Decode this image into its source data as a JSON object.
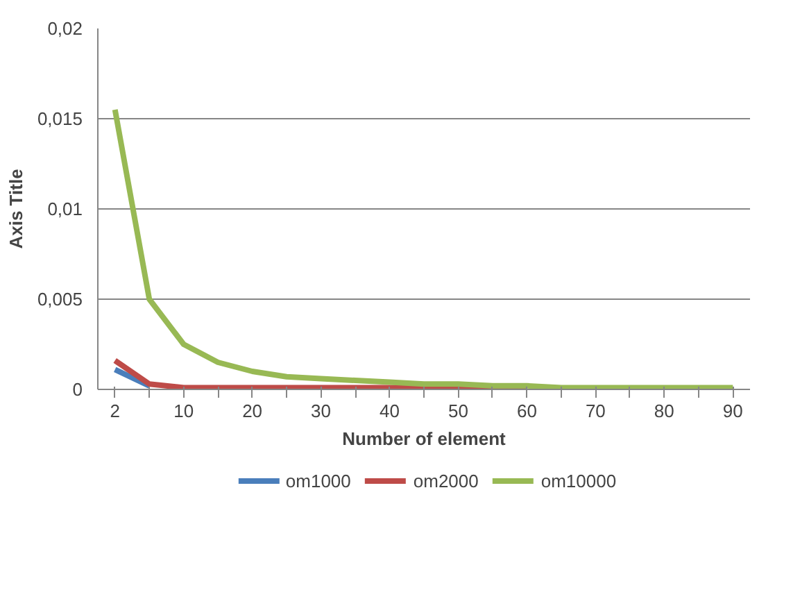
{
  "chart_data": {
    "type": "line",
    "xlabel": "Number of element",
    "ylabel": "Axis Title",
    "categories": [
      "2",
      null,
      "10",
      null,
      "20",
      null,
      "30",
      null,
      "40",
      null,
      "50",
      null,
      "60",
      null,
      "70",
      null,
      "80",
      null,
      "90"
    ],
    "ylim": [
      0,
      0.02
    ],
    "yticks": [
      0,
      {
        "value": 0.005,
        "label": "0,005"
      },
      {
        "value": 0.01,
        "label": "0,01"
      },
      {
        "value": 0.015,
        "label": "0,015"
      },
      {
        "value": 0.02,
        "label": "0,02"
      }
    ],
    "grid": "y",
    "legend": "bottom",
    "marker": "none",
    "line_style": "solid",
    "series": [
      {
        "name": "om1000",
        "color": "#4a7ebb",
        "values": [
          0.0011,
          0.0002,
          null,
          null,
          null,
          null,
          null,
          null,
          null,
          null,
          null,
          null,
          null,
          null,
          null,
          null,
          null,
          null,
          null
        ]
      },
      {
        "name": "om2000",
        "color": "#be4b48",
        "values": [
          0.0016,
          0.0003,
          0.0001,
          0.0001,
          0.0001,
          0.0001,
          0.0001,
          0.0001,
          0.0001,
          0.0001,
          0.0001,
          0.0001,
          0.0001,
          null,
          null,
          null,
          null,
          null,
          null
        ]
      },
      {
        "name": "om10000",
        "color": "#98b954",
        "values": [
          0.0155,
          0.005,
          0.0025,
          0.0015,
          0.001,
          0.0007,
          0.0006,
          0.0005,
          0.0004,
          0.0003,
          0.0003,
          0.0002,
          0.0002,
          0.0001,
          0.0001,
          0.0001,
          0.0001,
          0.0001,
          0.0001
        ]
      }
    ]
  }
}
